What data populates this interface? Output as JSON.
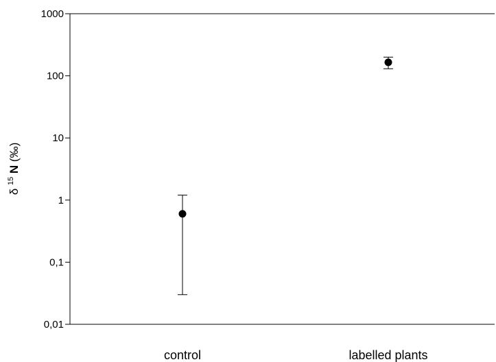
{
  "chart_data": {
    "type": "scatter",
    "title": "",
    "xlabel": "",
    "ylabel": {
      "delta": "δ",
      "superscript": "15",
      "element": "N",
      "unit": " (‰)"
    },
    "y_scale": "log",
    "ylim": [
      0.01,
      1000
    ],
    "y_ticks": [
      {
        "value": 0.01,
        "label": "0,01"
      },
      {
        "value": 0.1,
        "label": "0,1"
      },
      {
        "value": 1,
        "label": "1"
      },
      {
        "value": 10,
        "label": "10"
      },
      {
        "value": 100,
        "label": "100"
      },
      {
        "value": 1000,
        "label": "1000"
      }
    ],
    "categories": [
      "control",
      "labelled plants"
    ],
    "points": [
      {
        "category": "control",
        "y": 0.6,
        "err_low": 0.03,
        "err_high": 1.2
      },
      {
        "category": "labelled plants",
        "y": 165,
        "err_low": 130,
        "err_high": 200
      }
    ],
    "grid": false,
    "legend": "none",
    "colors": {
      "marker": "#000000",
      "axis": "#000000"
    }
  }
}
